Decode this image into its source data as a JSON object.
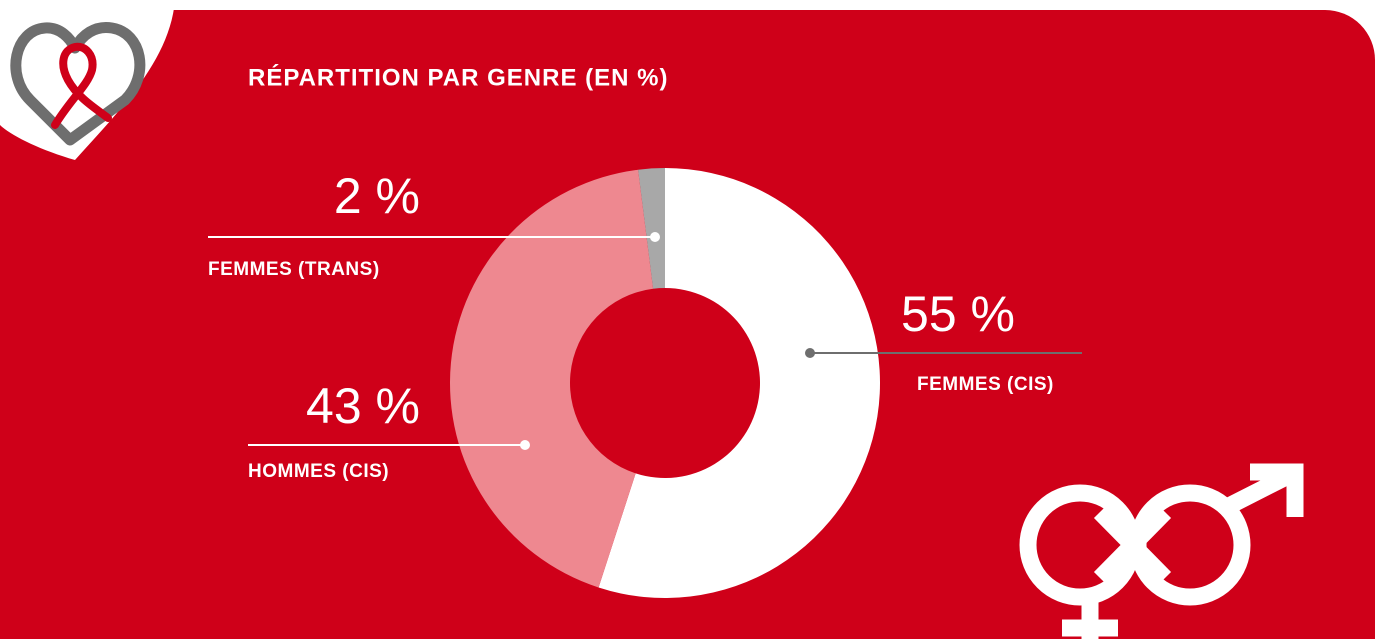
{
  "chart_data": {
    "type": "pie",
    "title": "RÉPARTITION PAR GENRE (EN %)",
    "categories": [
      "FEMMES (CIS)",
      "HOMMES (CIS)",
      "FEMMES (TRANS)"
    ],
    "values": [
      55,
      43,
      2
    ],
    "value_labels": [
      "55 %",
      "43 %",
      "2 %"
    ],
    "colors": [
      "#ffffff",
      "#ee8890",
      "#a8a8a8"
    ]
  }
}
